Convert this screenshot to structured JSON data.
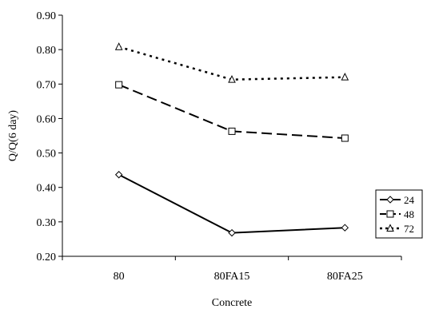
{
  "chart_data": {
    "type": "line",
    "title": "",
    "xlabel": "Concrete",
    "ylabel": "Q/Q(6 day)",
    "categories": [
      "80",
      "80FA15",
      "80FA25"
    ],
    "ylim": [
      0.2,
      0.9
    ],
    "yticks": [
      "0.20",
      "0.30",
      "0.40",
      "0.50",
      "0.60",
      "0.70",
      "0.80",
      "0.90"
    ],
    "grid": false,
    "legend_position": "right",
    "series": [
      {
        "name": "24",
        "values": [
          0.437,
          0.268,
          0.283
        ],
        "line_style": "solid",
        "marker": "diamond",
        "color": "#000000"
      },
      {
        "name": "48",
        "values": [
          0.698,
          0.563,
          0.543
        ],
        "line_style": "dashed",
        "marker": "square",
        "color": "#000000"
      },
      {
        "name": "72",
        "values": [
          0.808,
          0.713,
          0.72
        ],
        "line_style": "dotted",
        "marker": "triangle",
        "color": "#000000"
      }
    ]
  }
}
